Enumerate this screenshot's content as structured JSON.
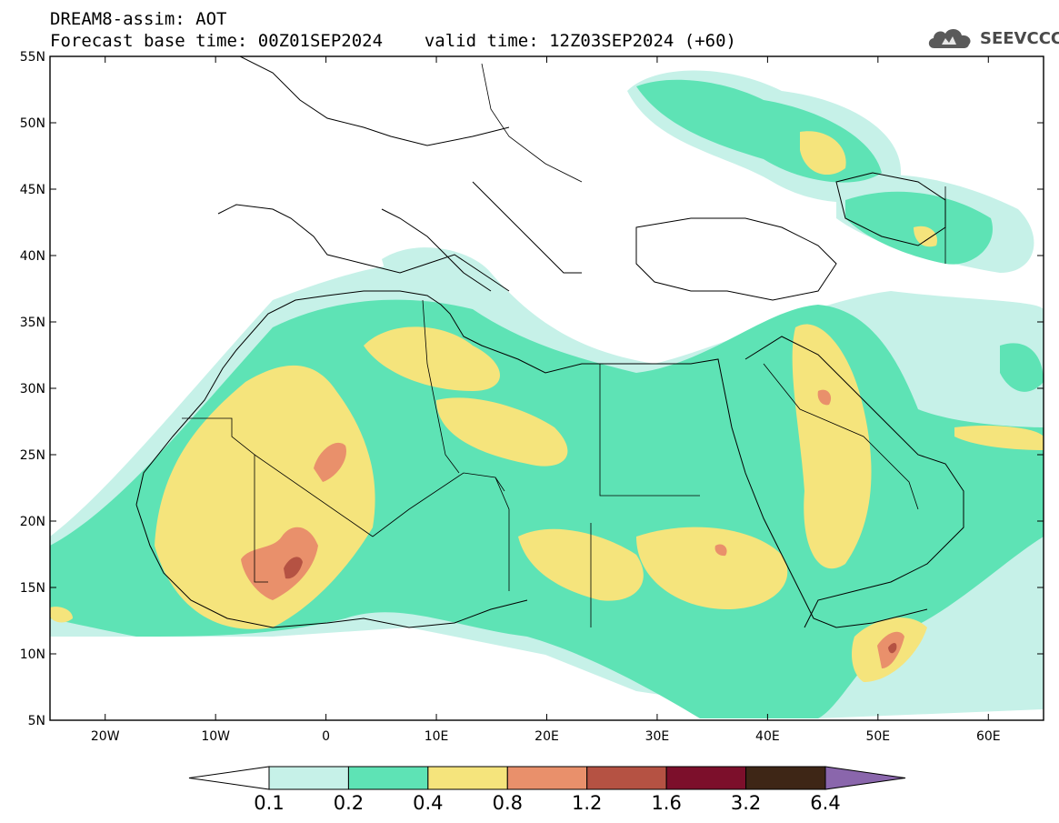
{
  "header": {
    "model_title": "DREAM8-assim: AOT",
    "forecast_base_time": "Forecast base time: 00Z01SEP2024",
    "valid_time": "valid time: 12Z03SEP2024 (+60)"
  },
  "logo": {
    "text": "SEEVCCC",
    "icon": "cloud-icon"
  },
  "map": {
    "lon_range": [
      -25,
      65
    ],
    "lat_range": [
      5,
      55
    ],
    "lon_ticks": [
      "20W",
      "10W",
      "0",
      "10E",
      "20E",
      "30E",
      "40E",
      "50E",
      "60E"
    ],
    "lat_ticks": [
      "55N",
      "50N",
      "45N",
      "40N",
      "35N",
      "30N",
      "25N",
      "20N",
      "15N",
      "10N",
      "5N"
    ]
  },
  "colorbar": {
    "labels": [
      "0.1",
      "0.2",
      "0.4",
      "0.8",
      "1.2",
      "1.6",
      "3.2",
      "6.4"
    ],
    "colors": [
      "#c6f1e8",
      "#5ee3b5",
      "#f5e47c",
      "#e9906b",
      "#b55243",
      "#7c0f2b",
      "#3e2616",
      "#8a66ac"
    ],
    "under_color": "#ffffff"
  }
}
